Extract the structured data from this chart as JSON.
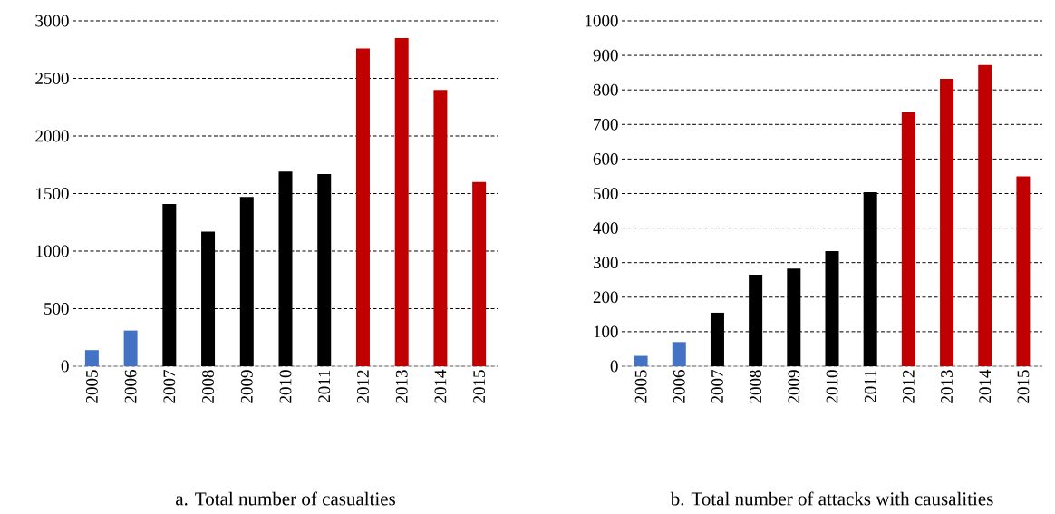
{
  "chart_data": [
    {
      "type": "bar",
      "title": "a.  Total number of casualties",
      "categories": [
        "2005",
        "2006",
        "2007",
        "2008",
        "2009",
        "2010",
        "2011",
        "2012",
        "2013",
        "2014",
        "2015"
      ],
      "values": [
        140,
        310,
        1410,
        1170,
        1470,
        1690,
        1670,
        2760,
        2850,
        2400,
        1600
      ],
      "colors": [
        "#4472c4",
        "#4472c4",
        "#000000",
        "#000000",
        "#000000",
        "#000000",
        "#000000",
        "#c00000",
        "#c00000",
        "#c00000",
        "#c00000"
      ],
      "ylim": [
        0,
        3000
      ],
      "yticks": [
        0,
        500,
        1000,
        1500,
        2000,
        2500,
        3000
      ],
      "grid": "y"
    },
    {
      "type": "bar",
      "title": "b.  Total number of attacks with causalities",
      "categories": [
        "2005",
        "2006",
        "2007",
        "2008",
        "2009",
        "2010",
        "2011",
        "2012",
        "2013",
        "2014",
        "2015"
      ],
      "values": [
        30,
        70,
        155,
        265,
        283,
        333,
        504,
        735,
        832,
        872,
        550
      ],
      "colors": [
        "#4472c4",
        "#4472c4",
        "#000000",
        "#000000",
        "#000000",
        "#000000",
        "#000000",
        "#c00000",
        "#c00000",
        "#c00000",
        "#c00000"
      ],
      "ylim": [
        0,
        1000
      ],
      "yticks": [
        0,
        100,
        200,
        300,
        400,
        500,
        600,
        700,
        800,
        900,
        1000
      ],
      "grid": "y"
    }
  ]
}
